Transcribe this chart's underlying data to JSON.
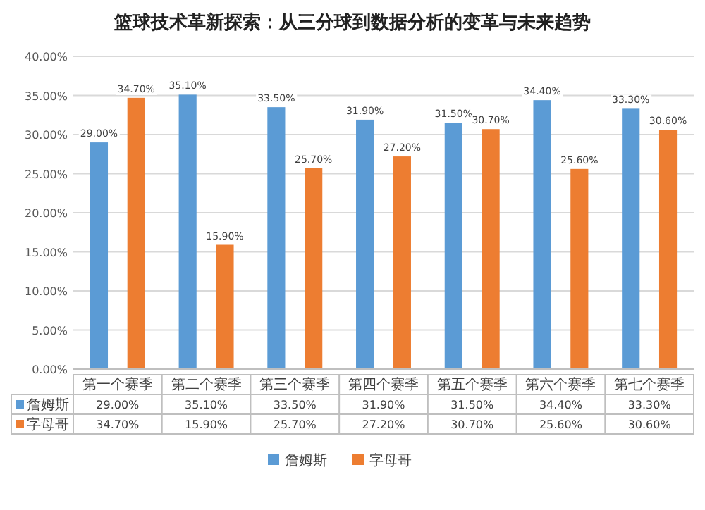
{
  "chart_data": {
    "type": "bar",
    "title": "篮球技术革新探索：从三分球到数据分析的变革与未来趋势",
    "categories": [
      "第一个赛季",
      "第二个赛季",
      "第三个赛季",
      "第四个赛季",
      "第五个赛季",
      "第六个赛季",
      "第七个赛季"
    ],
    "series": [
      {
        "name": "詹姆斯",
        "color": "#5b9bd5",
        "values": [
          29.0,
          35.1,
          33.5,
          31.9,
          31.5,
          34.4,
          33.3
        ],
        "value_labels": [
          "29.00%",
          "35.10%",
          "33.50%",
          "31.90%",
          "31.50%",
          "34.40%",
          "33.30%"
        ]
      },
      {
        "name": "字母哥",
        "color": "#ed7d31",
        "values": [
          34.7,
          15.9,
          25.7,
          27.2,
          30.7,
          25.6,
          30.6
        ],
        "value_labels": [
          "34.70%",
          "15.90%",
          "25.70%",
          "27.20%",
          "30.70%",
          "25.60%",
          "30.60%"
        ]
      }
    ],
    "ylim": [
      0,
      40
    ],
    "yticks": [
      {
        "value": 0,
        "label": "0.00%"
      },
      {
        "value": 5,
        "label": "5.00%"
      },
      {
        "value": 10,
        "label": "10.00%"
      },
      {
        "value": 15,
        "label": "15.00%"
      },
      {
        "value": 20,
        "label": "20.00%"
      },
      {
        "value": 25,
        "label": "25.00%"
      },
      {
        "value": 30,
        "label": "30.00%"
      },
      {
        "value": 35,
        "label": "35.00%"
      },
      {
        "value": 40,
        "label": "40.00%"
      }
    ],
    "grid": "y",
    "legend": "bottom"
  }
}
